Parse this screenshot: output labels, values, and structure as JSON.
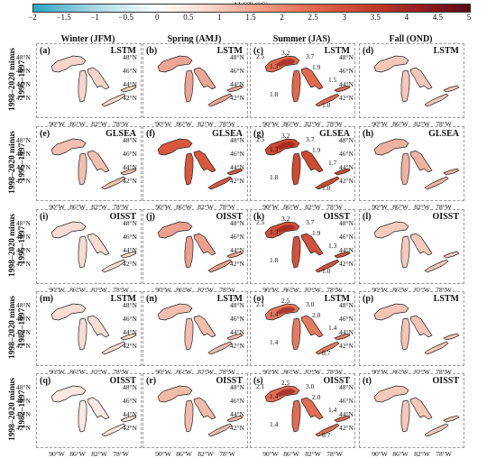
{
  "colorbar": {
    "title": "ΔLST (°C)",
    "ticks": [
      "−2",
      "−1.5",
      "−1",
      "−0.5",
      "0",
      "0.5",
      "1",
      "1.5",
      "2",
      "2.5",
      "3",
      "3.5",
      "4",
      "4.5",
      "5"
    ],
    "colors": {
      "low": "#2aa5c4",
      "mid": "#ffffff",
      "high": "#5a0a14"
    }
  },
  "columns": [
    "Winter (JFM)",
    "Spring (AMJ)",
    "Summer (JAS)",
    "Fall (OND)"
  ],
  "rows": [
    {
      "label_line1": "1998–2020 minus",
      "label_line2": "1995–1997",
      "method": "LSTM",
      "panels": [
        {
          "letter": "(a)",
          "fill": "#f6d6cc"
        },
        {
          "letter": "(b)",
          "fill": "#eda596"
        },
        {
          "letter": "(c)",
          "fill": "#e0694e",
          "annotations": [
            "2.5",
            "3.2",
            "3.7",
            "1.3",
            "1.9",
            "1.5",
            "1.8",
            "1.0"
          ]
        },
        {
          "letter": "(d)",
          "fill": "#f3c7b9"
        }
      ]
    },
    {
      "label_line1": "1998–2020 minus",
      "label_line2": "1995–1997",
      "method": "GLSEA",
      "panels": [
        {
          "letter": "(e)",
          "fill": "#f2c0b0"
        },
        {
          "letter": "(f)",
          "fill": "#d9573c"
        },
        {
          "letter": "(g)",
          "fill": "#cf4a30",
          "annotations": [
            "2.5",
            "3.2",
            "3.7",
            "1.3",
            "1.9",
            "1.7",
            "1.8",
            "1.0"
          ]
        },
        {
          "letter": "(h)",
          "fill": "#efb3a1"
        }
      ]
    },
    {
      "label_line1": "1998–2020 minus",
      "label_line2": "1995–1997",
      "method": "OISST",
      "panels": [
        {
          "letter": "(i)",
          "fill": "#f7dcd3"
        },
        {
          "letter": "(j)",
          "fill": "#ec9f8c"
        },
        {
          "letter": "(k)",
          "fill": "#d2513a",
          "annotations": [
            "2.5",
            "3.2",
            "3.7",
            "1.3",
            "1.9",
            "1.3",
            "1.8",
            "1.0"
          ]
        },
        {
          "letter": "(l)",
          "fill": "#f4cbbd"
        }
      ]
    },
    {
      "label_line1": "1998–2020 minus",
      "label_line2": "1982–1997",
      "method": "LSTM",
      "panels": [
        {
          "letter": "(m)",
          "fill": "#f7ddd4"
        },
        {
          "letter": "(n)",
          "fill": "#f2bfae"
        },
        {
          "letter": "(o)",
          "fill": "#e57a60",
          "annotations": [
            "2.1",
            "2.5",
            "3.0",
            "1.4",
            "2.0",
            "1.4",
            "1.4",
            "0.7"
          ]
        },
        {
          "letter": "(p)",
          "fill": "#f3c5b6"
        }
      ]
    },
    {
      "label_line1": "1998–2020 minus",
      "label_line2": "1982–1997",
      "method": "OISST",
      "panels": [
        {
          "letter": "(q)",
          "fill": "#fae8e2"
        },
        {
          "letter": "(r)",
          "fill": "#f1bba9"
        },
        {
          "letter": "(s)",
          "fill": "#e06c52",
          "annotations": [
            "2.1",
            "2.5",
            "3.0",
            "1.4",
            "2.0",
            "1.4",
            "1.4",
            "0.7"
          ]
        },
        {
          "letter": "(t)",
          "fill": "#f4c9ba"
        }
      ]
    }
  ],
  "lat_labels": [
    "48°N",
    "46°N",
    "44°N",
    "42°N"
  ],
  "lon_labels": [
    "90°W",
    "86°W",
    "82°W",
    "78°W"
  ]
}
